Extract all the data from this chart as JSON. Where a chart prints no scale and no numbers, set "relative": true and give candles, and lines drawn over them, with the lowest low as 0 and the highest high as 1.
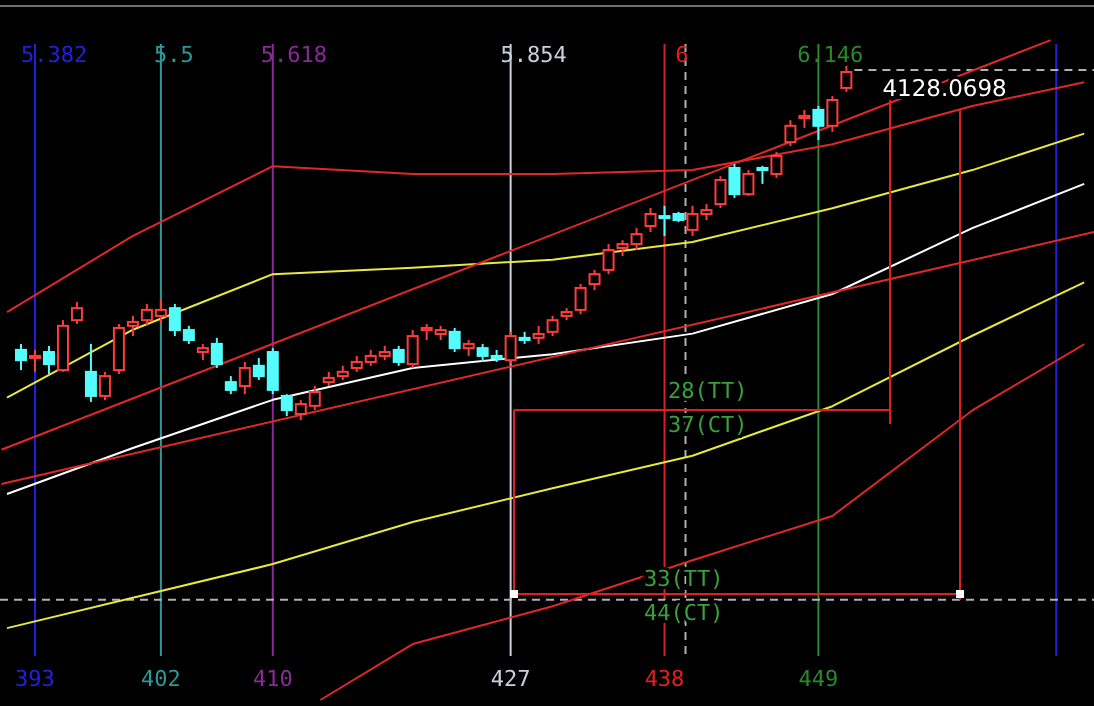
{
  "chart_data": {
    "type": "candlestick",
    "relative": true,
    "x": [
      392,
      393,
      394,
      395,
      396,
      397,
      398,
      399,
      400,
      401,
      402,
      403,
      404,
      405,
      406,
      407,
      408,
      409,
      410,
      411,
      412,
      413,
      414,
      415,
      416,
      417,
      418,
      419,
      420,
      421,
      422,
      423,
      424,
      425,
      426,
      427,
      428,
      429,
      430,
      431,
      432,
      433,
      434,
      435,
      436,
      437,
      438,
      439,
      440,
      441,
      442,
      443,
      444,
      445,
      446,
      447,
      448,
      449,
      450,
      451
    ],
    "ohlc": [
      [
        0.198,
        0.215,
        0.141,
        0.169
      ],
      [
        0.181,
        0.198,
        0.136,
        0.181
      ],
      [
        0.192,
        0.209,
        0.13,
        0.158
      ],
      [
        0.141,
        0.282,
        0.136,
        0.266
      ],
      [
        0.282,
        0.333,
        0.271,
        0.316
      ],
      [
        0.136,
        0.215,
        0.051,
        0.068
      ],
      [
        0.068,
        0.136,
        0.056,
        0.124
      ],
      [
        0.141,
        0.271,
        0.13,
        0.26
      ],
      [
        0.266,
        0.294,
        0.237,
        0.277
      ],
      [
        0.282,
        0.328,
        0.266,
        0.311
      ],
      [
        0.294,
        0.339,
        0.271,
        0.311
      ],
      [
        0.316,
        0.328,
        0.237,
        0.254
      ],
      [
        0.254,
        0.266,
        0.215,
        0.226
      ],
      [
        0.192,
        0.215,
        0.169,
        0.203
      ],
      [
        0.215,
        0.232,
        0.147,
        0.158
      ],
      [
        0.107,
        0.124,
        0.073,
        0.085
      ],
      [
        0.096,
        0.164,
        0.073,
        0.147
      ],
      [
        0.153,
        0.175,
        0.113,
        0.124
      ],
      [
        0.192,
        0.203,
        0.073,
        0.085
      ],
      [
        0.068,
        0.073,
        0.011,
        0.028
      ],
      [
        0.017,
        0.056,
        0,
        0.045
      ],
      [
        0.04,
        0.096,
        0.028,
        0.079
      ],
      [
        0.107,
        0.136,
        0.096,
        0.119
      ],
      [
        0.124,
        0.153,
        0.113,
        0.136
      ],
      [
        0.147,
        0.181,
        0.136,
        0.164
      ],
      [
        0.164,
        0.198,
        0.153,
        0.181
      ],
      [
        0.181,
        0.209,
        0.169,
        0.192
      ],
      [
        0.198,
        0.209,
        0.153,
        0.164
      ],
      [
        0.158,
        0.254,
        0.147,
        0.237
      ],
      [
        0.254,
        0.271,
        0.226,
        0.26
      ],
      [
        0.243,
        0.266,
        0.226,
        0.254
      ],
      [
        0.249,
        0.26,
        0.192,
        0.203
      ],
      [
        0.203,
        0.226,
        0.181,
        0.215
      ],
      [
        0.203,
        0.215,
        0.164,
        0.181
      ],
      [
        0.181,
        0.198,
        0.164,
        0.175
      ],
      [
        0.169,
        0.249,
        0.158,
        0.237
      ],
      [
        0.232,
        0.249,
        0.215,
        0.226
      ],
      [
        0.232,
        0.266,
        0.215,
        0.243
      ],
      [
        0.249,
        0.294,
        0.237,
        0.282
      ],
      [
        0.294,
        0.316,
        0.282,
        0.305
      ],
      [
        0.311,
        0.384,
        0.299,
        0.373
      ],
      [
        0.384,
        0.424,
        0.367,
        0.412
      ],
      [
        0.424,
        0.497,
        0.412,
        0.48
      ],
      [
        0.486,
        0.508,
        0.463,
        0.497
      ],
      [
        0.497,
        0.542,
        0.48,
        0.525
      ],
      [
        0.548,
        0.599,
        0.531,
        0.582
      ],
      [
        0.576,
        0.605,
        0.52,
        0.571
      ],
      [
        0.582,
        0.588,
        0.559,
        0.565
      ],
      [
        0.537,
        0.605,
        0.52,
        0.582
      ],
      [
        0.582,
        0.61,
        0.565,
        0.593
      ],
      [
        0.61,
        0.689,
        0.599,
        0.678
      ],
      [
        0.712,
        0.723,
        0.627,
        0.638
      ],
      [
        0.638,
        0.706,
        0.633,
        0.695
      ],
      [
        0.712,
        0.718,
        0.667,
        0.706
      ],
      [
        0.695,
        0.757,
        0.684,
        0.746
      ],
      [
        0.785,
        0.847,
        0.774,
        0.831
      ],
      [
        0.853,
        0.876,
        0.825,
        0.859
      ],
      [
        0.876,
        0.887,
        0.791,
        0.831
      ],
      [
        0.831,
        0.915,
        0.814,
        0.904
      ],
      [
        0.938,
        1,
        0.927,
        0.983
      ]
    ],
    "xlim": [
      390.5,
      468.7
    ],
    "xticks": [
      393,
      402,
      410,
      427,
      438,
      449
    ],
    "x2lim": [
      5.3288,
      6.4056
    ],
    "x2ticks": [
      5.382,
      5.5,
      5.618,
      5.854,
      6,
      6.146
    ],
    "series": [
      {
        "type": "line",
        "color": "#e02828",
        "x": [
          391,
          400,
          410,
          420,
          430,
          440,
          450,
          460,
          468
        ],
        "values": [
          0.305,
          0.52,
          0.717,
          0.695,
          0.695,
          0.706,
          0.779,
          0.887,
          0.954
        ]
      },
      {
        "type": "line",
        "color": "#e8e840",
        "x": [
          391,
          400,
          410,
          420,
          430,
          440,
          450,
          460,
          468
        ],
        "values": [
          0.063,
          0.255,
          0.412,
          0.43,
          0.453,
          0.503,
          0.598,
          0.706,
          0.809
        ]
      },
      {
        "type": "line",
        "color": "#ffffff",
        "x": [
          391,
          400,
          410,
          420,
          430,
          440,
          450,
          460,
          468
        ],
        "values": [
          -0.209,
          -0.079,
          0.057,
          0.147,
          0.186,
          0.244,
          0.356,
          0.542,
          0.667
        ]
      },
      {
        "type": "line",
        "color": "#e8e840",
        "x": [
          391,
          400,
          410,
          420,
          430,
          440,
          450,
          460,
          468
        ],
        "values": [
          -0.588,
          -0.502,
          -0.407,
          -0.288,
          -0.193,
          -0.101,
          0.039,
          0.238,
          0.389
        ]
      },
      {
        "type": "line",
        "color": "#e02828",
        "x": [
          413.4,
          420,
          430,
          440,
          450,
          460,
          468
        ],
        "values": [
          -0.791,
          -0.633,
          -0.526,
          -0.396,
          -0.271,
          0.027,
          0.214
        ]
      },
      {
        "type": "line",
        "color": "#e02828",
        "x": [
          390.6,
          465.6
        ],
        "values": [
          -0.084,
          1.073
        ]
      },
      {
        "type": "line",
        "color": "#e02828",
        "x": [
          390.6,
          468.7
        ],
        "values": [
          -0.181,
          0.531
        ]
      }
    ],
    "ref_lines": [
      {
        "axis": "x",
        "value": 393,
        "color": "#2020e0"
      },
      {
        "axis": "x",
        "value": 402,
        "color": "#2a9a9a"
      },
      {
        "axis": "x",
        "value": 410,
        "color": "#8a2a9a"
      },
      {
        "axis": "x",
        "value": 427,
        "color": "#c8d0e0"
      },
      {
        "axis": "x",
        "value": 438,
        "color": "#e02020"
      },
      {
        "axis": "x",
        "value": 449,
        "color": "#2a8a2a"
      },
      {
        "axis": "x",
        "value": 466,
        "color": "#2020e0"
      },
      {
        "axis": "x",
        "value": 439.5,
        "color": "#b0b0b0",
        "line_style": "dashed"
      },
      {
        "axis": "y",
        "value": 0.989,
        "color": "#b0b0b0",
        "line_style": "dashed"
      },
      {
        "axis": "y",
        "value": -0.508,
        "color": "#b0b0b0",
        "line_style": "dashed"
      }
    ],
    "annotations": [
      {
        "text": "4128.0698",
        "x": 451,
        "y": 1
      },
      "28(TT)",
      "37(CT)",
      "33(TT)",
      "44(CT)"
    ]
  }
}
